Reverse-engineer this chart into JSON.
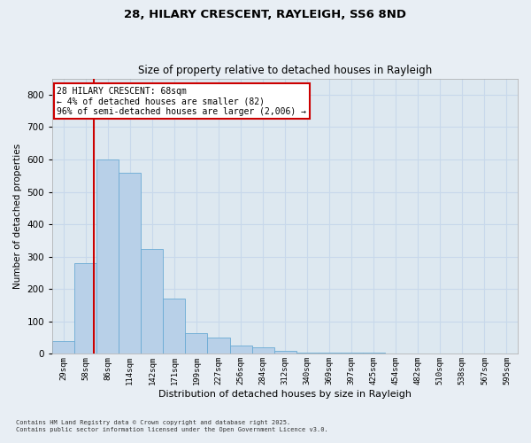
{
  "title1": "28, HILARY CRESCENT, RAYLEIGH, SS6 8ND",
  "title2": "Size of property relative to detached houses in Rayleigh",
  "xlabel": "Distribution of detached houses by size in Rayleigh",
  "ylabel": "Number of detached properties",
  "bin_labels": [
    "29sqm",
    "58sqm",
    "86sqm",
    "114sqm",
    "142sqm",
    "171sqm",
    "199sqm",
    "227sqm",
    "256sqm",
    "284sqm",
    "312sqm",
    "340sqm",
    "369sqm",
    "397sqm",
    "425sqm",
    "454sqm",
    "482sqm",
    "510sqm",
    "538sqm",
    "567sqm",
    "595sqm"
  ],
  "bar_values": [
    40,
    280,
    600,
    560,
    325,
    170,
    65,
    50,
    25,
    20,
    10,
    5,
    5,
    5,
    3,
    2,
    2,
    1,
    1,
    0,
    0
  ],
  "bar_color": "#b8d0e8",
  "bar_edge_color": "#6aaad4",
  "annotation_title": "28 HILARY CRESCENT: 68sqm",
  "annotation_line1": "← 4% of detached houses are smaller (82)",
  "annotation_line2": "96% of semi-detached houses are larger (2,006) →",
  "annotation_box_color": "#ffffff",
  "annotation_box_edge": "#cc0000",
  "red_line_color": "#cc0000",
  "ylim": [
    0,
    850
  ],
  "yticks": [
    0,
    100,
    200,
    300,
    400,
    500,
    600,
    700,
    800
  ],
  "grid_color": "#c8d8eb",
  "background_color": "#dde8f0",
  "fig_background": "#e8eef4",
  "footer1": "Contains HM Land Registry data © Crown copyright and database right 2025.",
  "footer2": "Contains public sector information licensed under the Open Government Licence v3.0."
}
